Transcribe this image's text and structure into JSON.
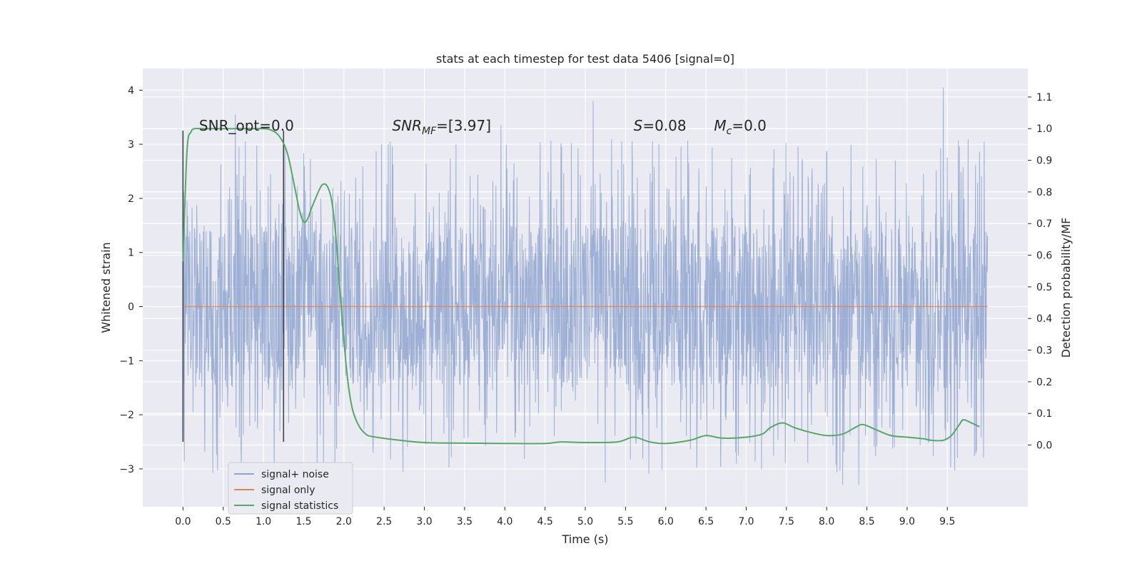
{
  "chart_data": {
    "type": "line",
    "title": "stats at each timestep for test data 5406 [signal=0]",
    "xlabel": "Time (s)",
    "ylabel": "Whitened strain",
    "ylabel_right": "Detection probability/MF",
    "xlim": [
      -0.5,
      10.5
    ],
    "ylim": [
      -3.7,
      4.4
    ],
    "ylim_right": [
      -0.195,
      1.19
    ],
    "x_ticks": [
      "0.0",
      "0.5",
      "1.0",
      "1.5",
      "2.0",
      "2.5",
      "3.0",
      "3.5",
      "4.0",
      "4.5",
      "5.0",
      "5.5",
      "6.0",
      "6.5",
      "7.0",
      "7.5",
      "8.0",
      "8.5",
      "9.0",
      "9.5"
    ],
    "y_ticks": [
      "−3",
      "−2",
      "−1",
      "0",
      "1",
      "2",
      "3",
      "4"
    ],
    "y_ticks_right": [
      "0.0",
      "0.1",
      "0.2",
      "0.3",
      "0.4",
      "0.5",
      "0.6",
      "0.7",
      "0.8",
      "0.9",
      "1.0",
      "1.1"
    ],
    "grid": true,
    "legend_position": "lower-left",
    "series": [
      {
        "name": "signal+ noise",
        "axis": "left",
        "color": "#8fa5cf",
        "x_range": [
          0.0,
          10.0
        ],
        "core_band": [
          -1.5,
          1.5
        ],
        "notable_peaks": [
          {
            "x": 0.65,
            "y": 3.55
          },
          {
            "x": 5.1,
            "y": 3.8
          },
          {
            "x": 9.45,
            "y": 4.05
          },
          {
            "x": 3.95,
            "y": 3.35
          },
          {
            "x": 8.4,
            "y": -3.3
          },
          {
            "x": 5.25,
            "y": -3.25
          },
          {
            "x": 8.2,
            "y": -3.3
          }
        ]
      },
      {
        "name": "signal only",
        "axis": "left",
        "color": "#dd8452",
        "x": [
          0.0,
          10.0
        ],
        "y": [
          0.0,
          0.0
        ]
      },
      {
        "name": "signal statistics",
        "axis": "right",
        "color": "#55a868",
        "x": [
          0.0,
          0.05,
          0.1,
          0.15,
          0.2,
          0.3,
          0.5,
          0.7,
          0.9,
          1.0,
          1.1,
          1.2,
          1.3,
          1.4,
          1.45,
          1.5,
          1.55,
          1.6,
          1.7,
          1.75,
          1.8,
          1.85,
          1.9,
          1.95,
          2.0,
          2.05,
          2.1,
          2.15,
          2.2,
          2.25,
          2.3,
          2.4,
          2.6,
          3.0,
          3.5,
          4.0,
          4.5,
          4.7,
          5.0,
          5.4,
          5.6,
          5.8,
          6.0,
          6.3,
          6.5,
          6.7,
          7.0,
          7.2,
          7.3,
          7.45,
          7.6,
          7.8,
          8.0,
          8.2,
          8.35,
          8.45,
          8.6,
          8.8,
          9.0,
          9.2,
          9.3,
          9.45,
          9.55,
          9.65,
          9.7,
          9.8,
          9.9
        ],
        "y": [
          0.58,
          0.93,
          0.99,
          1.0,
          1.0,
          1.0,
          1.0,
          1.0,
          1.0,
          1.0,
          0.995,
          0.975,
          0.92,
          0.8,
          0.74,
          0.705,
          0.715,
          0.75,
          0.81,
          0.825,
          0.815,
          0.77,
          0.66,
          0.49,
          0.33,
          0.2,
          0.12,
          0.08,
          0.055,
          0.04,
          0.03,
          0.025,
          0.018,
          0.008,
          0.006,
          0.005,
          0.005,
          0.01,
          0.008,
          0.01,
          0.025,
          0.01,
          0.005,
          0.015,
          0.03,
          0.022,
          0.025,
          0.035,
          0.055,
          0.07,
          0.055,
          0.04,
          0.03,
          0.035,
          0.055,
          0.065,
          0.05,
          0.03,
          0.025,
          0.02,
          0.015,
          0.015,
          0.03,
          0.065,
          0.08,
          0.07,
          0.058
        ]
      }
    ],
    "vertical_markers": [
      {
        "x": 0.0,
        "y_range": [
          -2.5,
          3.25
        ],
        "color": "#444444"
      },
      {
        "x": 1.25,
        "y_range": [
          -2.5,
          3.25
        ],
        "color": "#444444"
      }
    ],
    "annotations": [
      {
        "text": "SNR_opt=0.0",
        "x": 0.2,
        "y": 3.25
      },
      {
        "parts": [
          "SNR",
          "MF",
          "=[3.97]"
        ],
        "x": 2.6,
        "y": 3.25
      },
      {
        "parts": [
          "S",
          "=0.08"
        ],
        "x": 5.6,
        "y": 3.25
      },
      {
        "parts": [
          "M",
          "c",
          "=0.0"
        ],
        "x": 6.6,
        "y": 3.25
      }
    ]
  }
}
